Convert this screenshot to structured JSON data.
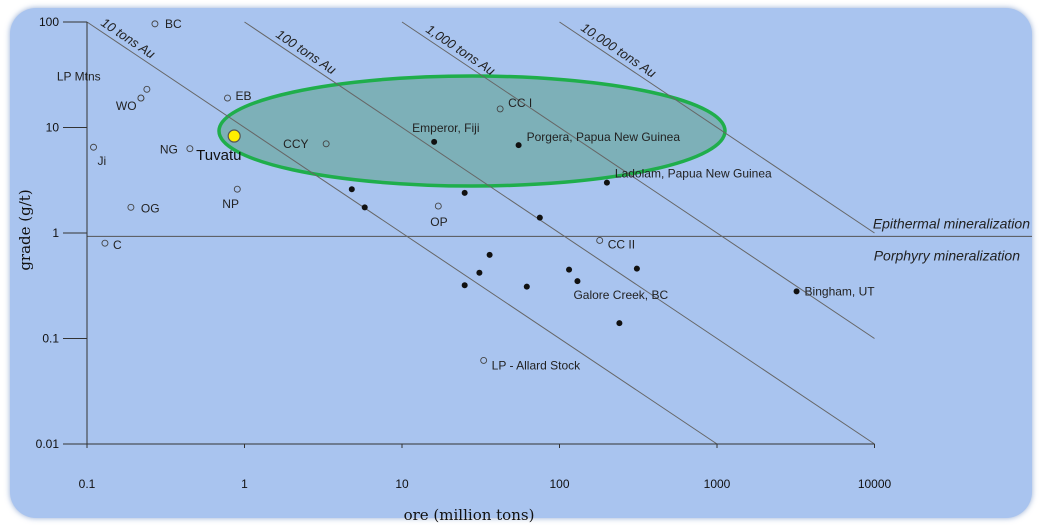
{
  "chart_data": {
    "type": "scatter",
    "xlabel": "ore (million tons)",
    "ylabel": "grade (g/t)",
    "xscale": "log",
    "yscale": "log",
    "xlim": [
      0.1,
      10000
    ],
    "ylim": [
      0.01,
      100
    ],
    "x_ticks": [
      "0.1",
      "1",
      "10",
      "100",
      "1000",
      "10000"
    ],
    "y_ticks": [
      "100",
      "10",
      "1",
      "0.1",
      "0.01"
    ],
    "grade_boundary": 0.93,
    "regions": [
      {
        "name": "epithermal",
        "label": "Epithermal mineralization"
      },
      {
        "name": "porphyry",
        "label": "Porphyry mineralization"
      }
    ],
    "tonnage_lines": [
      {
        "tons_au": 10,
        "label": "10 tons Au"
      },
      {
        "tons_au": 100,
        "label": "100 tons Au"
      },
      {
        "tons_au": 1000,
        "label": "1,000 tons Au"
      },
      {
        "tons_au": 10000,
        "label": "10,000 tons Au"
      }
    ],
    "highlight_ellipse": {
      "color": "#1fae4b",
      "fill": "#5aa08a"
    },
    "highlight": {
      "name": "Tuvatu",
      "x": 0.86,
      "y": 8.3,
      "color": "#ffee00"
    },
    "series": [
      {
        "style": "open",
        "points": [
          {
            "label": "BC",
            "x": 0.27,
            "y": 96
          },
          {
            "label": "LP Mtns",
            "x": 0.24,
            "y": 23
          },
          {
            "label": "",
            "x": 0.22,
            "y": 19
          },
          {
            "label": "WO",
            "x": 0.22,
            "y": 19
          },
          {
            "label": "EB",
            "x": 0.78,
            "y": 19
          },
          {
            "label": "NG",
            "x": 0.45,
            "y": 6.3
          },
          {
            "label": "Ji",
            "x": 0.11,
            "y": 6.5
          },
          {
            "label": "CCY",
            "x": 3.3,
            "y": 7.0
          },
          {
            "label": "CC I",
            "x": 42,
            "y": 15
          },
          {
            "label": "NP",
            "x": 0.9,
            "y": 2.6
          },
          {
            "label": "OG",
            "x": 0.19,
            "y": 1.75
          },
          {
            "label": "OP",
            "x": 17,
            "y": 1.8
          },
          {
            "label": "C",
            "x": 0.13,
            "y": 0.8
          },
          {
            "label": "CC II",
            "x": 180,
            "y": 0.85
          },
          {
            "label": "LP - Allard Stock",
            "x": 33,
            "y": 0.062
          }
        ]
      },
      {
        "style": "filled",
        "points": [
          {
            "label": "Emperor, Fiji",
            "x": 16,
            "y": 7.3
          },
          {
            "label": "Porgera, Papua New Guinea",
            "x": 55,
            "y": 6.8
          },
          {
            "label": "Ladolam, Papua New Guinea",
            "x": 200,
            "y": 3.0
          },
          {
            "label": "",
            "x": 4.8,
            "y": 2.6
          },
          {
            "label": "",
            "x": 5.8,
            "y": 1.75
          },
          {
            "label": "",
            "x": 25,
            "y": 2.4
          },
          {
            "label": "",
            "x": 75,
            "y": 1.4
          },
          {
            "label": "",
            "x": 36,
            "y": 0.62
          },
          {
            "label": "",
            "x": 31,
            "y": 0.42
          },
          {
            "label": "",
            "x": 25,
            "y": 0.32
          },
          {
            "label": "",
            "x": 62,
            "y": 0.31
          },
          {
            "label": "",
            "x": 115,
            "y": 0.45
          },
          {
            "label": "Galore Creek, BC",
            "x": 130,
            "y": 0.35
          },
          {
            "label": "",
            "x": 310,
            "y": 0.46
          },
          {
            "label": "",
            "x": 240,
            "y": 0.14
          },
          {
            "label": "Bingham, UT",
            "x": 3200,
            "y": 0.28
          }
        ]
      }
    ]
  }
}
